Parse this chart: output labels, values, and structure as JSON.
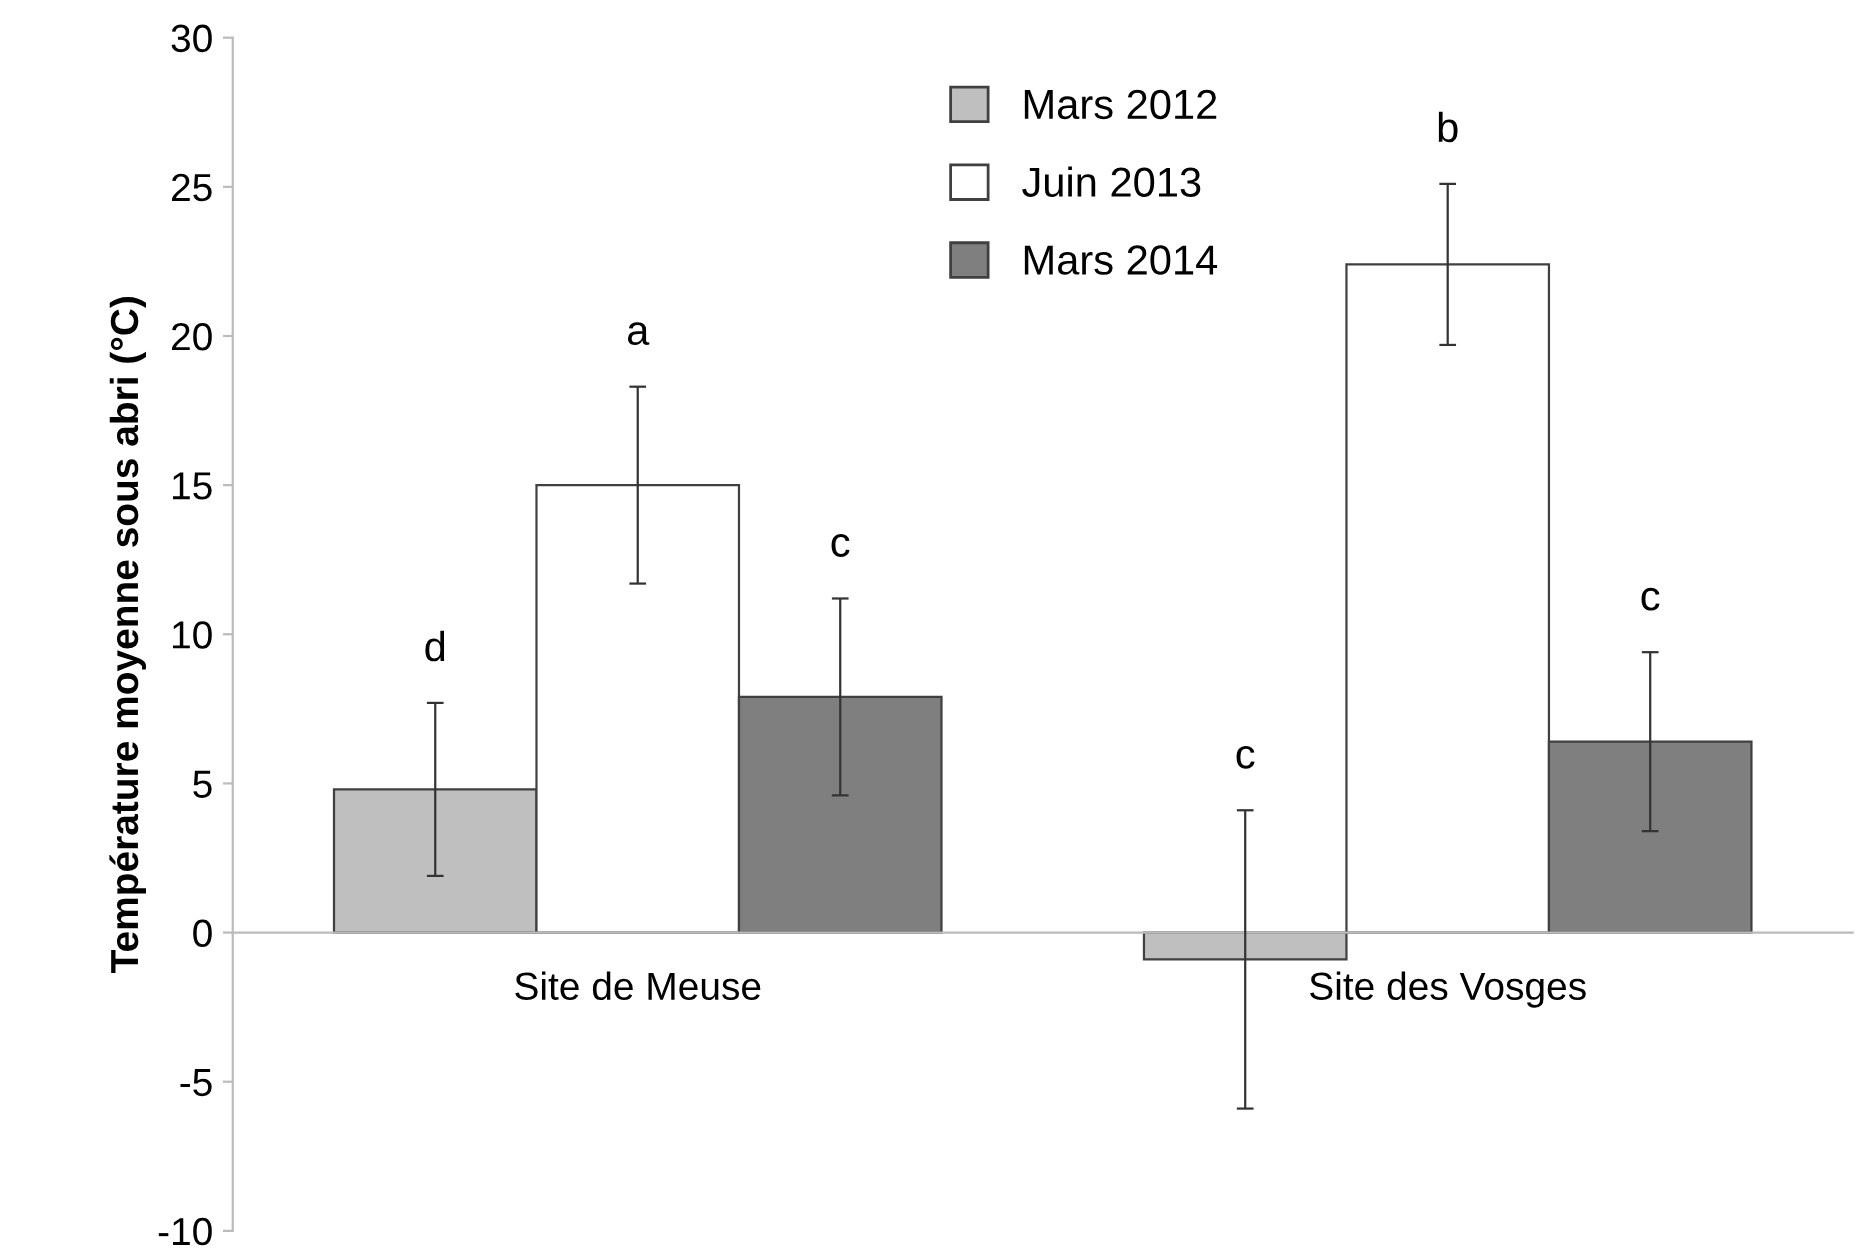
{
  "chart_data": {
    "type": "bar",
    "ylabel": "Température moyenne sous abri (°C)",
    "categories": [
      "Site de Meuse",
      "Site des Vosges"
    ],
    "series": [
      {
        "name": "Mars 2012",
        "color": "#bfbfbf",
        "values": [
          4.8,
          -0.9
        ],
        "errors": [
          2.9,
          5.0
        ]
      },
      {
        "name": "Juin 2013",
        "color": "#ffffff",
        "values": [
          15.0,
          22.4
        ],
        "errors": [
          3.3,
          2.7
        ]
      },
      {
        "name": "Mars 2014",
        "color": "#7f7f7f",
        "values": [
          7.9,
          6.4
        ],
        "errors": [
          3.3,
          3.0
        ]
      }
    ],
    "annotations": [
      "d",
      "a",
      "c",
      "c",
      "b",
      "c"
    ],
    "ylim": [
      -10,
      30
    ],
    "yticks": [
      -10,
      -5,
      0,
      5,
      10,
      15,
      20,
      25,
      30
    ],
    "grid": false,
    "legend": "top"
  }
}
